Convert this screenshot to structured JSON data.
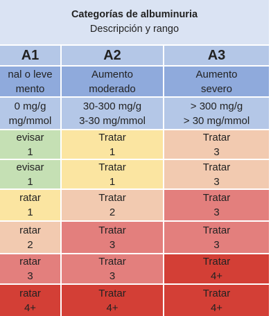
{
  "header": {
    "title": "Categorías de albuminuria",
    "subtitle": "Descripción y rango"
  },
  "columns": [
    {
      "code": "A1",
      "description": [
        "nal o leve",
        "mento"
      ],
      "range": [
        "0 mg/g",
        "mg/mmol"
      ]
    },
    {
      "code": "A2",
      "description": [
        "Aumento",
        "moderado"
      ],
      "range": [
        "30-300 mg/g",
        "3-30 mg/mmol"
      ]
    },
    {
      "code": "A3",
      "description": [
        "Aumento",
        "severo"
      ],
      "range": [
        "> 300 mg/g",
        "> 30 mg/mmol"
      ]
    }
  ],
  "rows": [
    [
      {
        "action": "evisar",
        "freq": "1",
        "level": "green"
      },
      {
        "action": "Tratar",
        "freq": "1",
        "level": "yellow"
      },
      {
        "action": "Tratar",
        "freq": "3",
        "level": "orange"
      }
    ],
    [
      {
        "action": "evisar",
        "freq": "1",
        "level": "green"
      },
      {
        "action": "Tratar",
        "freq": "1",
        "level": "yellow"
      },
      {
        "action": "Tratar",
        "freq": "3",
        "level": "orange"
      }
    ],
    [
      {
        "action": "ratar",
        "freq": "1",
        "level": "yellow"
      },
      {
        "action": "Tratar",
        "freq": "2",
        "level": "orange"
      },
      {
        "action": "Tratar",
        "freq": "3",
        "level": "red"
      }
    ],
    [
      {
        "action": "ratar",
        "freq": "2",
        "level": "orange"
      },
      {
        "action": "Tratar",
        "freq": "3",
        "level": "red"
      },
      {
        "action": "Tratar",
        "freq": "3",
        "level": "red"
      }
    ],
    [
      {
        "action": "ratar",
        "freq": "3",
        "level": "red"
      },
      {
        "action": "Tratar",
        "freq": "3",
        "level": "red"
      },
      {
        "action": "Tratar",
        "freq": "4+",
        "level": "deep-red"
      }
    ],
    [
      {
        "action": "ratar",
        "freq": "4+",
        "level": "deep-red"
      },
      {
        "action": "Tratar",
        "freq": "4+",
        "level": "deep-red"
      },
      {
        "action": "Tratar",
        "freq": "4+",
        "level": "deep-red"
      }
    ]
  ],
  "colors": {
    "header_light": "#dae3f3",
    "header_mid": "#b4c7e7",
    "header_dark": "#8faadc",
    "border": "#ffffff",
    "level_colors": {
      "green": "#c5e0b4",
      "yellow": "#fbe5a1",
      "orange": "#f2cab0",
      "red": "#e37f7d",
      "deep-red": "#d33f36"
    }
  }
}
